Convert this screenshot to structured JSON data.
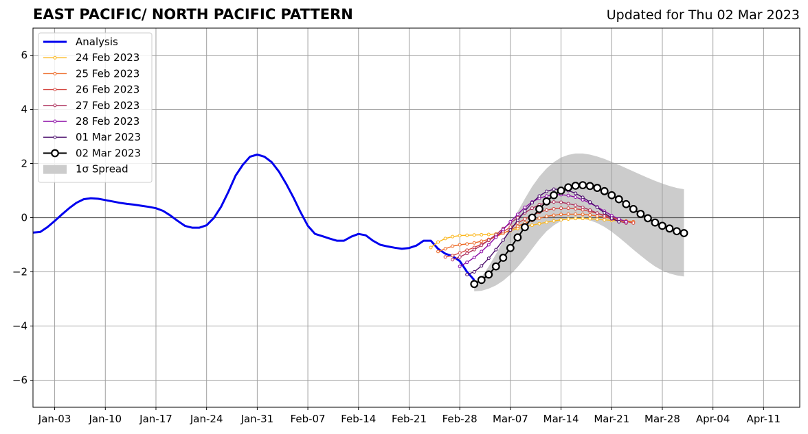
{
  "chart_data": {
    "type": "line",
    "title": "EAST PACIFIC/ NORTH PACIFIC PATTERN",
    "subtitle": "Updated for Thu 02 Mar 2023",
    "xlabel": "",
    "ylabel": "",
    "ylim": [
      -7,
      7
    ],
    "xlim": [
      "2022-12-31",
      "2023-04-16"
    ],
    "yticks": [
      6,
      4,
      2,
      0,
      -2,
      -4,
      -6
    ],
    "ytick_labels": [
      "6",
      "4",
      "2",
      "0",
      "−2",
      "−4",
      "−6"
    ],
    "xticks": [
      "2023-01-03",
      "2023-01-10",
      "2023-01-17",
      "2023-01-24",
      "2023-01-31",
      "2023-02-07",
      "2023-02-14",
      "2023-02-21",
      "2023-02-28",
      "2023-03-07",
      "2023-03-14",
      "2023-03-21",
      "2023-03-28",
      "2023-04-04",
      "2023-04-11"
    ],
    "xtick_labels": [
      "Jan-03",
      "Jan-10",
      "Jan-17",
      "Jan-24",
      "Jan-31",
      "Feb-07",
      "Feb-14",
      "Feb-21",
      "Feb-28",
      "Mar-07",
      "Mar-14",
      "Mar-21",
      "Mar-28",
      "Apr-04",
      "Apr-11"
    ],
    "grid": true,
    "legend_position": "top-left",
    "series": [
      {
        "name": "Analysis",
        "color": "#0000ee",
        "style": "thick-line",
        "start": "2022-12-31",
        "values": [
          -0.55,
          -0.53,
          -0.35,
          -0.12,
          0.12,
          0.35,
          0.55,
          0.68,
          0.72,
          0.7,
          0.65,
          0.6,
          0.55,
          0.51,
          0.48,
          0.44,
          0.4,
          0.35,
          0.25,
          0.08,
          -0.12,
          -0.3,
          -0.37,
          -0.37,
          -0.28,
          -0.01,
          0.4,
          0.95,
          1.55,
          1.95,
          2.25,
          2.33,
          2.25,
          2.05,
          1.7,
          1.25,
          0.75,
          0.2,
          -0.3,
          -0.6,
          -0.68,
          -0.77,
          -0.85,
          -0.85,
          -0.7,
          -0.6,
          -0.65,
          -0.85,
          -1.0,
          -1.06,
          -1.11,
          -1.15,
          -1.12,
          -1.03,
          -0.85,
          -0.85,
          -1.15,
          -1.33,
          -1.42,
          -1.6,
          -2.0,
          -2.3
        ]
      },
      {
        "name": "24 Feb 2023",
        "color": "#fbb61a",
        "style": "dot-line",
        "start": "2023-02-24",
        "values": [
          -1.1,
          -0.9,
          -0.77,
          -0.7,
          -0.66,
          -0.65,
          -0.64,
          -0.63,
          -0.62,
          -0.6,
          -0.56,
          -0.48,
          -0.4,
          -0.33,
          -0.28,
          -0.22,
          -0.17,
          -0.12,
          -0.08,
          -0.05,
          -0.03,
          -0.03,
          -0.04,
          -0.06,
          -0.08,
          -0.1,
          -0.12,
          -0.14,
          -0.16
        ]
      },
      {
        "name": "25 Feb 2023",
        "color": "#ed6925",
        "style": "dot-line",
        "start": "2023-02-25",
        "values": [
          -1.25,
          -1.15,
          -1.05,
          -1.0,
          -0.97,
          -0.93,
          -0.87,
          -0.8,
          -0.7,
          -0.58,
          -0.45,
          -0.32,
          -0.2,
          -0.1,
          -0.02,
          0.05,
          0.09,
          0.12,
          0.13,
          0.13,
          0.12,
          0.1,
          0.06,
          0.02,
          -0.02,
          -0.07,
          -0.12,
          -0.15
        ]
      },
      {
        "name": "26 Feb 2023",
        "color": "#d44842",
        "style": "dot-line",
        "start": "2023-02-26",
        "values": [
          -1.45,
          -1.4,
          -1.3,
          -1.2,
          -1.1,
          -0.98,
          -0.84,
          -0.68,
          -0.52,
          -0.35,
          -0.2,
          -0.05,
          0.08,
          0.2,
          0.28,
          0.33,
          0.35,
          0.35,
          0.33,
          0.29,
          0.23,
          0.16,
          0.09,
          0.01,
          -0.07,
          -0.14,
          -0.2
        ]
      },
      {
        "name": "27 Feb 2023",
        "color": "#ae305c",
        "style": "dot-line",
        "start": "2023-02-27",
        "values": [
          -1.55,
          -1.45,
          -1.32,
          -1.18,
          -1.02,
          -0.83,
          -0.62,
          -0.4,
          -0.2,
          0.0,
          0.18,
          0.35,
          0.48,
          0.55,
          0.58,
          0.57,
          0.52,
          0.46,
          0.38,
          0.28,
          0.17,
          0.06,
          -0.05,
          -0.13,
          -0.2
        ]
      },
      {
        "name": "28 Feb 2023",
        "color": "#8b0aa5",
        "style": "dot-line",
        "start": "2023-02-28",
        "values": [
          -1.8,
          -1.65,
          -1.47,
          -1.25,
          -1.0,
          -0.72,
          -0.44,
          -0.15,
          0.12,
          0.38,
          0.58,
          0.72,
          0.8,
          0.85,
          0.85,
          0.82,
          0.76,
          0.66,
          0.54,
          0.4,
          0.24,
          0.08,
          -0.05,
          -0.15
        ]
      },
      {
        "name": "01 Mar 2023",
        "color": "#4a0c6b",
        "style": "dot-line",
        "start": "2023-03-01",
        "values": [
          -2.1,
          -2.0,
          -1.78,
          -1.5,
          -1.18,
          -0.83,
          -0.46,
          -0.1,
          0.25,
          0.55,
          0.8,
          0.97,
          1.05,
          1.05,
          1.0,
          0.9,
          0.75,
          0.58,
          0.38,
          0.18,
          -0.02,
          -0.15
        ]
      },
      {
        "name": "02 Mar 2023",
        "color": "#000000",
        "style": "circle-line",
        "start": "2023-03-02",
        "values": [
          -2.45,
          -2.3,
          -2.1,
          -1.8,
          -1.48,
          -1.12,
          -0.73,
          -0.35,
          0.0,
          0.32,
          0.6,
          0.83,
          1.0,
          1.12,
          1.18,
          1.2,
          1.17,
          1.1,
          0.98,
          0.83,
          0.68,
          0.5,
          0.32,
          0.14,
          -0.02,
          -0.18,
          -0.3,
          -0.4,
          -0.5,
          -0.57
        ]
      }
    ],
    "spread": {
      "name": "1σ Spread",
      "color": "#cccccc",
      "start": "2023-03-02",
      "upper": [
        -2.5,
        -2.2,
        -1.8,
        -1.35,
        -0.85,
        -0.3,
        0.22,
        0.7,
        1.15,
        1.52,
        1.82,
        2.05,
        2.22,
        2.32,
        2.37,
        2.37,
        2.33,
        2.26,
        2.17,
        2.06,
        1.95,
        1.83,
        1.71,
        1.59,
        1.47,
        1.36,
        1.26,
        1.17,
        1.1,
        1.05
      ],
      "lower": [
        -2.72,
        -2.7,
        -2.62,
        -2.5,
        -2.33,
        -2.1,
        -1.82,
        -1.5,
        -1.15,
        -0.8,
        -0.5,
        -0.28,
        -0.12,
        -0.05,
        -0.02,
        -0.04,
        -0.1,
        -0.2,
        -0.34,
        -0.52,
        -0.73,
        -0.95,
        -1.18,
        -1.4,
        -1.61,
        -1.8,
        -1.95,
        -2.06,
        -2.13,
        -2.17
      ]
    }
  }
}
